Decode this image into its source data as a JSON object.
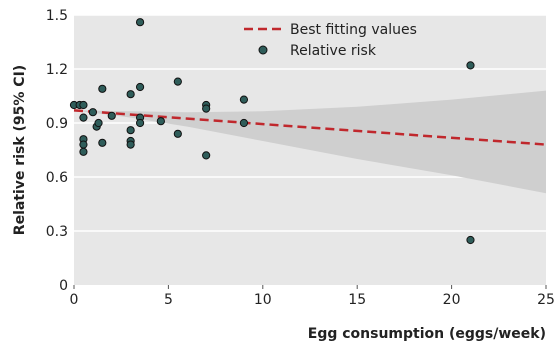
{
  "chart_data": {
    "type": "scatter",
    "xlabel": "Egg consumption (eggs/week)",
    "ylabel": "Relative risk (95% CI)",
    "xlim": [
      0,
      25
    ],
    "ylim": [
      0,
      1.5
    ],
    "x_ticks": [
      "0",
      "5",
      "10",
      "15",
      "20",
      "25"
    ],
    "y_ticks": [
      "0",
      "0.3",
      "0.6",
      "0.9",
      "1.2",
      "1.5"
    ],
    "grid": "horizontal",
    "legend_position": "top-right",
    "legend": {
      "line_label": "Best fitting values",
      "points_label": "Relative risk"
    },
    "fit_line": {
      "x": [
        0,
        25
      ],
      "y": [
        0.97,
        0.78
      ]
    },
    "ci_band": {
      "x": [
        0,
        3,
        6,
        10,
        15,
        20,
        25
      ],
      "upper": [
        0.97,
        0.965,
        0.96,
        0.965,
        0.99,
        1.03,
        1.08
      ],
      "lower": [
        0.97,
        0.93,
        0.88,
        0.8,
        0.7,
        0.61,
        0.51
      ]
    },
    "points": [
      {
        "x": 0.0,
        "y": 1.0
      },
      {
        "x": 0.3,
        "y": 1.0
      },
      {
        "x": 0.5,
        "y": 1.0
      },
      {
        "x": 0.5,
        "y": 0.93
      },
      {
        "x": 0.5,
        "y": 0.81
      },
      {
        "x": 0.5,
        "y": 0.78
      },
      {
        "x": 0.5,
        "y": 0.74
      },
      {
        "x": 1.0,
        "y": 0.96
      },
      {
        "x": 1.2,
        "y": 0.88
      },
      {
        "x": 1.3,
        "y": 0.9
      },
      {
        "x": 1.5,
        "y": 1.09
      },
      {
        "x": 1.5,
        "y": 0.79
      },
      {
        "x": 2.0,
        "y": 0.94
      },
      {
        "x": 3.0,
        "y": 1.06
      },
      {
        "x": 3.0,
        "y": 0.86
      },
      {
        "x": 3.0,
        "y": 0.8
      },
      {
        "x": 3.0,
        "y": 0.78
      },
      {
        "x": 3.5,
        "y": 1.46
      },
      {
        "x": 3.5,
        "y": 1.1
      },
      {
        "x": 3.5,
        "y": 0.93
      },
      {
        "x": 3.5,
        "y": 0.9
      },
      {
        "x": 4.6,
        "y": 0.91
      },
      {
        "x": 5.5,
        "y": 1.13
      },
      {
        "x": 5.5,
        "y": 0.84
      },
      {
        "x": 7.0,
        "y": 1.0
      },
      {
        "x": 7.0,
        "y": 0.98
      },
      {
        "x": 7.0,
        "y": 0.72
      },
      {
        "x": 9.0,
        "y": 1.03
      },
      {
        "x": 9.0,
        "y": 0.9
      },
      {
        "x": 21.0,
        "y": 1.22
      },
      {
        "x": 21.0,
        "y": 0.25
      }
    ],
    "colors": {
      "plot_background": "#e7e7e7",
      "grid": "#ffffff",
      "ci_band": "#cfcfcf",
      "fit_line": "#c0282d",
      "point_fill": "#2f5d5a",
      "point_stroke": "#111111"
    }
  }
}
